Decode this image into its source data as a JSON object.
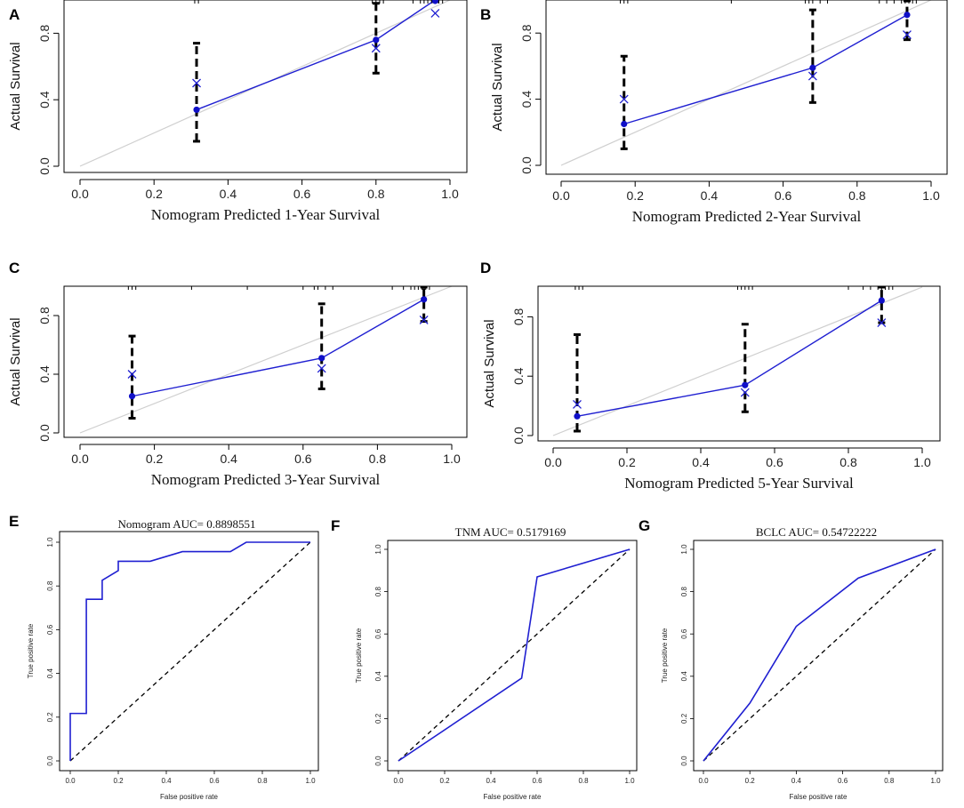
{
  "chart_data": [
    {
      "panel": "A",
      "type": "line",
      "subtype": "calibration",
      "xlabel": "Nomogram Predicted 1-Year Survival",
      "ylabel": "Actual Survival",
      "xlim": [
        0,
        1
      ],
      "ylim": [
        0,
        1
      ],
      "xticks": [
        "0.0",
        "0.2",
        "0.4",
        "0.6",
        "0.8",
        "1.0"
      ],
      "yticks": [
        "0.0",
        "0.4",
        "0.8"
      ],
      "x": [
        0.315,
        0.8,
        0.96
      ],
      "observed": [
        0.34,
        0.76,
        1.0
      ],
      "corrected": [
        0.5,
        0.71,
        0.92
      ],
      "ci_low": [
        0.15,
        0.56,
        0.99
      ],
      "ci_high": [
        0.74,
        0.98,
        1.0
      ],
      "rug": [
        0.31,
        0.32,
        0.79,
        0.8,
        0.81,
        0.82,
        0.9,
        0.92,
        0.93,
        0.94,
        0.95,
        0.96,
        0.97,
        0.98
      ]
    },
    {
      "panel": "B",
      "type": "line",
      "subtype": "calibration",
      "xlabel": "Nomogram Predicted 2-Year Survival",
      "ylabel": "Actual Survival",
      "xlim": [
        0,
        1
      ],
      "ylim": [
        0,
        1
      ],
      "xticks": [
        "0.0",
        "0.2",
        "0.4",
        "0.6",
        "0.8",
        "1.0"
      ],
      "yticks": [
        "0.0",
        "0.4",
        "0.8"
      ],
      "x": [
        0.17,
        0.68,
        0.935
      ],
      "observed": [
        0.25,
        0.59,
        0.91
      ],
      "corrected": [
        0.4,
        0.54,
        0.79
      ],
      "ci_low": [
        0.1,
        0.38,
        0.76
      ],
      "ci_high": [
        0.66,
        0.94,
        1.0
      ],
      "rug": [
        0.16,
        0.17,
        0.18,
        0.46,
        0.66,
        0.67,
        0.68,
        0.7,
        0.72,
        0.86,
        0.88,
        0.9,
        0.92,
        0.93,
        0.94,
        0.95,
        0.96
      ]
    },
    {
      "panel": "C",
      "type": "line",
      "subtype": "calibration",
      "xlabel": "Nomogram Predicted 3-Year Survival",
      "ylabel": "Actual Survival",
      "xlim": [
        0,
        1
      ],
      "ylim": [
        0,
        1
      ],
      "xticks": [
        "0.0",
        "0.2",
        "0.4",
        "0.6",
        "0.8",
        "1.0"
      ],
      "yticks": [
        "0.0",
        "0.4",
        "0.8"
      ],
      "x": [
        0.14,
        0.65,
        0.925
      ],
      "observed": [
        0.25,
        0.51,
        0.91
      ],
      "corrected": [
        0.4,
        0.44,
        0.77
      ],
      "ci_low": [
        0.1,
        0.3,
        0.76
      ],
      "ci_high": [
        0.66,
        0.88,
        1.0
      ],
      "rug": [
        0.13,
        0.14,
        0.15,
        0.3,
        0.45,
        0.6,
        0.63,
        0.64,
        0.66,
        0.68,
        0.84,
        0.87,
        0.89,
        0.9,
        0.91,
        0.92,
        0.93,
        0.94
      ]
    },
    {
      "panel": "D",
      "type": "line",
      "subtype": "calibration",
      "xlabel": "Nomogram Predicted 5-Year Survival",
      "ylabel": "Actual Survival",
      "xlim": [
        0,
        1
      ],
      "ylim": [
        0,
        1
      ],
      "xticks": [
        "0.0",
        "0.2",
        "0.4",
        "0.6",
        "0.8",
        "1.0"
      ],
      "yticks": [
        "0.0",
        "0.4",
        "0.8"
      ],
      "x": [
        0.065,
        0.52,
        0.89
      ],
      "observed": [
        0.13,
        0.34,
        0.91
      ],
      "corrected": [
        0.21,
        0.29,
        0.76
      ],
      "ci_low": [
        0.03,
        0.16,
        0.76
      ],
      "ci_high": [
        0.68,
        0.75,
        1.0
      ],
      "rug": [
        0.06,
        0.07,
        0.08,
        0.5,
        0.51,
        0.52,
        0.53,
        0.54,
        0.8,
        0.84,
        0.86,
        0.88,
        0.89,
        0.9,
        0.91,
        0.92
      ]
    },
    {
      "panel": "E",
      "type": "line",
      "subtype": "roc",
      "title": "Nomogram AUC= 0.8898551",
      "xlabel": "False positive rate",
      "ylabel": "True positive rate",
      "xlim": [
        0,
        1
      ],
      "ylim": [
        0,
        1
      ],
      "xticks": [
        "0.0",
        "0.2",
        "0.4",
        "0.6",
        "0.8",
        "1.0"
      ],
      "yticks": [
        "0.0",
        "0.2",
        "0.4",
        "0.6",
        "0.8",
        "1.0"
      ],
      "x": [
        0,
        0,
        0.067,
        0.067,
        0.133,
        0.133,
        0.2,
        0.2,
        0.333,
        0.467,
        0.667,
        0.733,
        0.733,
        1.0
      ],
      "y": [
        0,
        0.217,
        0.217,
        0.739,
        0.739,
        0.826,
        0.87,
        0.913,
        0.913,
        0.957,
        0.957,
        1.0,
        1.0,
        1.0
      ]
    },
    {
      "panel": "F",
      "type": "line",
      "subtype": "roc",
      "title": "TNM AUC= 0.5179169",
      "xlabel": "False positive rate",
      "ylabel": "True positive rate",
      "xlim": [
        0,
        1
      ],
      "ylim": [
        0,
        1
      ],
      "xticks": [
        "0.0",
        "0.2",
        "0.4",
        "0.6",
        "0.8",
        "1.0"
      ],
      "yticks": [
        "0.0",
        "0.2",
        "0.4",
        "0.6",
        "0.8",
        "1.0"
      ],
      "x": [
        0,
        0.533,
        0.6,
        1.0
      ],
      "y": [
        0,
        0.391,
        0.87,
        1.0
      ]
    },
    {
      "panel": "G",
      "type": "line",
      "subtype": "roc",
      "title": "BCLC AUC= 0.54722222",
      "xlabel": "False positive rate",
      "ylabel": "True positive rate",
      "xlim": [
        0,
        1
      ],
      "ylim": [
        0,
        1
      ],
      "xticks": [
        "0.0",
        "0.2",
        "0.4",
        "0.6",
        "0.8",
        "1.0"
      ],
      "yticks": [
        "0.0",
        "0.2",
        "0.4",
        "0.6",
        "0.8",
        "1.0"
      ],
      "x": [
        0,
        0.2,
        0.4,
        0.667,
        1.0
      ],
      "y": [
        0,
        0.273,
        0.636,
        0.864,
        1.0
      ]
    }
  ],
  "colors": {
    "curve": "#1f1fd1",
    "point": "#1010c8",
    "ideal": "#cfcfcf",
    "errorbar": "#000000",
    "diagonal": "#000000"
  }
}
